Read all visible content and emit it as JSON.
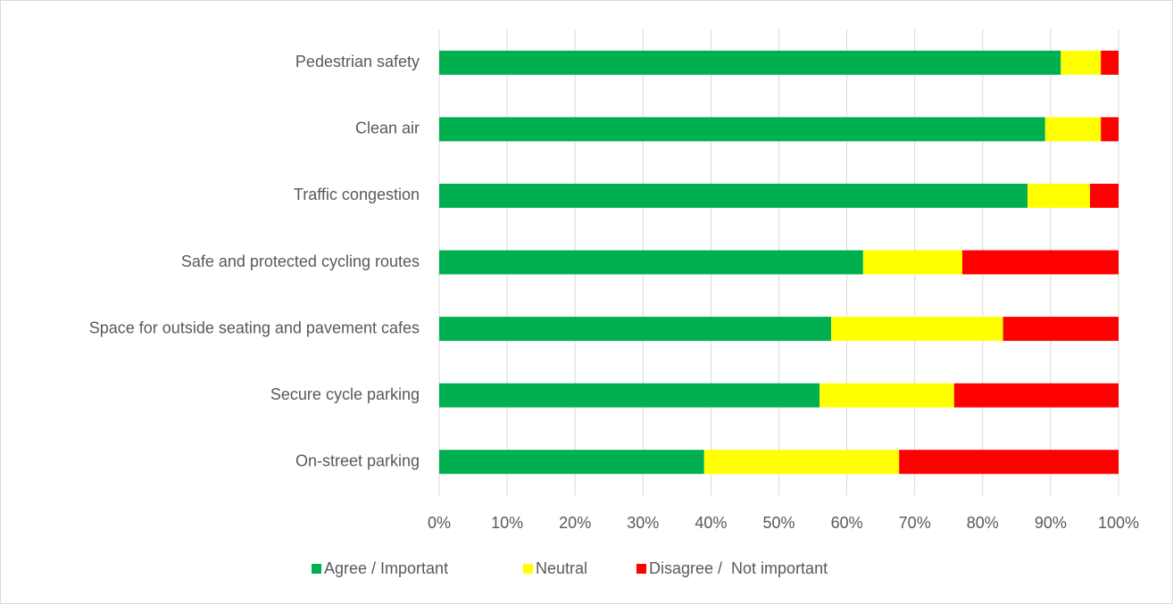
{
  "chart_data": {
    "type": "stacked_bar_horizontal",
    "categories": [
      "Pedestrian safety",
      "Clean air",
      "Traffic congestion",
      "Safe and protected cycling routes",
      "Space for outside seating and pavement cafes",
      "Secure cycle parking",
      "On-street parking"
    ],
    "series": [
      {
        "name": "Agree / Important",
        "color": "#00b050",
        "values": [
          91.5,
          89.2,
          86.6,
          62.4,
          57.7,
          56.0,
          39.0
        ]
      },
      {
        "name": "Neutral",
        "color": "#ffff00",
        "values": [
          5.9,
          8.2,
          9.2,
          14.6,
          25.3,
          19.8,
          28.7
        ]
      },
      {
        "name": "Disagree /  Not important",
        "color": "#ff0000",
        "values": [
          2.6,
          2.6,
          4.2,
          23.0,
          17.0,
          24.2,
          32.3
        ]
      }
    ],
    "xlim": [
      0,
      100
    ],
    "xticks": [
      {
        "value": 0,
        "label": "0%"
      },
      {
        "value": 10,
        "label": "10%"
      },
      {
        "value": 20,
        "label": "20%"
      },
      {
        "value": 30,
        "label": "30%"
      },
      {
        "value": 40,
        "label": "40%"
      },
      {
        "value": 50,
        "label": "50%"
      },
      {
        "value": 60,
        "label": "60%"
      },
      {
        "value": 70,
        "label": "70%"
      },
      {
        "value": 80,
        "label": "80%"
      },
      {
        "value": 90,
        "label": "90%"
      },
      {
        "value": 100,
        "label": "100%"
      }
    ],
    "grid": true,
    "legend": "bottom"
  }
}
